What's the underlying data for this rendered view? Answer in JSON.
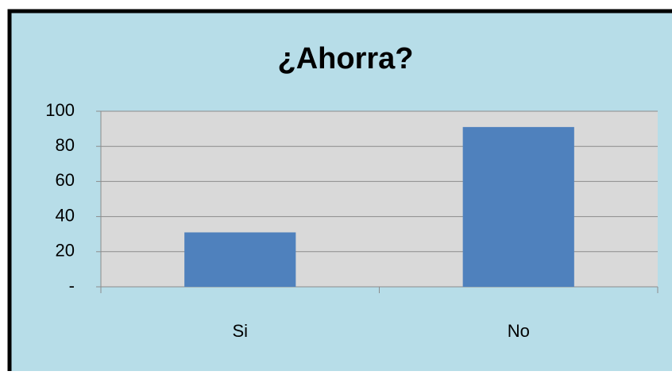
{
  "chart_data": {
    "type": "bar",
    "title": "¿Ahorra?",
    "categories": [
      "Si",
      "No"
    ],
    "values": [
      31,
      91
    ],
    "color": "#4f81bd",
    "ylim": [
      0,
      100
    ],
    "yticks": [
      {
        "value": 0,
        "label": "-"
      },
      20,
      40,
      60,
      80,
      100
    ],
    "grid": true
  }
}
